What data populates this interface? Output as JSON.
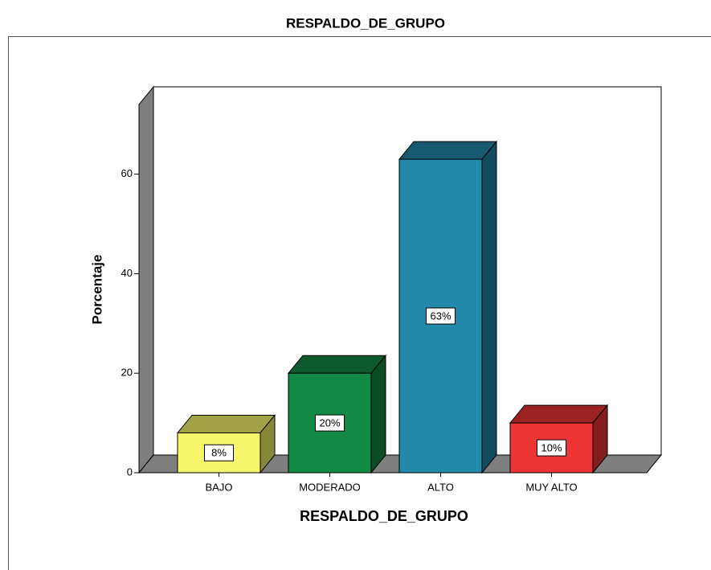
{
  "chart_data": {
    "type": "bar3d",
    "title": "RESPALDO_DE_GRUPO",
    "x_label": "RESPALDO_DE_GRUPO",
    "y_label": "Porcentaje",
    "categories": [
      "BAJO",
      "MODERADO",
      "ALTO",
      "MUY ALTO"
    ],
    "values": [
      8,
      20,
      63,
      10
    ],
    "value_labels": [
      "8%",
      "20%",
      "63%",
      "10%"
    ],
    "colors": [
      "#f7f76c",
      "#128a45",
      "#2389ab",
      "#ee3536"
    ],
    "ylim": [
      0,
      74
    ],
    "yticks": [
      0,
      20,
      40,
      60
    ]
  }
}
